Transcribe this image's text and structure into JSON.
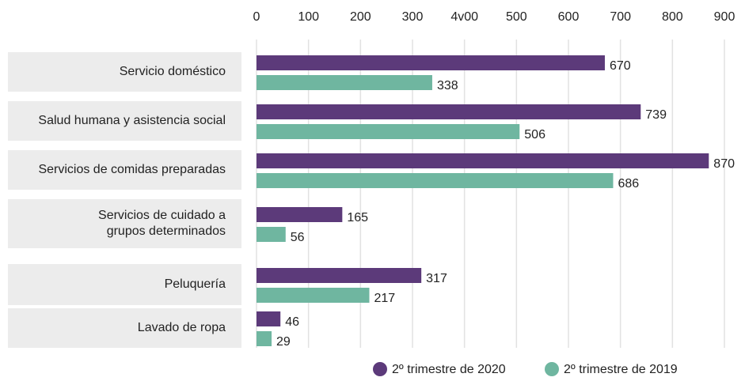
{
  "chart_data": {
    "type": "bar",
    "orientation": "horizontal",
    "categories": [
      "Servicio doméstico",
      "Salud humana y asistencia social",
      "Servicios de comidas preparadas",
      "Servicios de cuidado a\ngrupos determinados",
      "Peluquería",
      "Lavado de ropa"
    ],
    "series": [
      {
        "name": "2º trimestre de 2020",
        "color": "#5c3a7a",
        "values": [
          670,
          739,
          870,
          165,
          317,
          46
        ]
      },
      {
        "name": "2º trimestre de 2019",
        "color": "#6fb6a0",
        "values": [
          338,
          506,
          686,
          56,
          217,
          29
        ]
      }
    ],
    "xlim": [
      0,
      900
    ],
    "xticks": [
      0,
      100,
      200,
      300,
      {
        "value": 400,
        "label": "4v00"
      },
      500,
      600,
      700,
      800,
      900
    ],
    "grid": true
  }
}
